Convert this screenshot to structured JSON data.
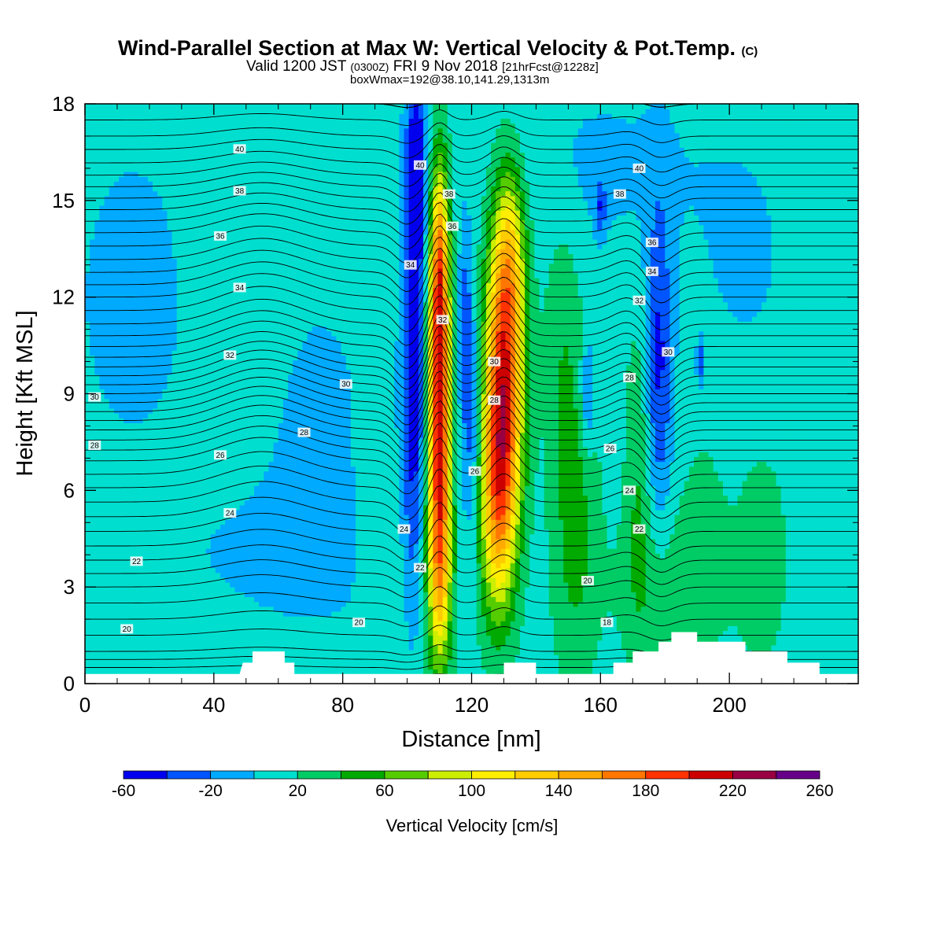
{
  "title": {
    "main": "Wind-Parallel Section at Max W: Vertical Velocity & Pot.Temp.",
    "main_mark": "(C)",
    "valid_a": "Valid 1200 JST",
    "valid_b": "(0300Z)",
    "valid_c": "FRI 9 Nov 2018",
    "valid_d": "[21hrFcst@1228z]",
    "box": "boxWmax=192@38.10,141.29,1313m"
  },
  "colorbar": {
    "label": "Vertical Velocity [cm/s]",
    "tick_labels": [
      "-60",
      "-20",
      "20",
      "60",
      "100",
      "140",
      "180",
      "220",
      "260"
    ],
    "levels": [
      -60,
      -40,
      -20,
      0,
      20,
      40,
      60,
      80,
      100,
      120,
      140,
      160,
      180,
      200,
      220,
      240,
      260
    ],
    "colors": [
      "#0000ee",
      "#0055ff",
      "#00aaff",
      "#00dfcf",
      "#00cc66",
      "#00aa00",
      "#55cc00",
      "#ccee00",
      "#ffee00",
      "#ffcc00",
      "#ffaa00",
      "#ff7700",
      "#ff3300",
      "#cc0000",
      "#990044",
      "#660088"
    ]
  },
  "chart_data": {
    "type": "heatmap",
    "title": "Wind-Parallel Section at Max W: Vertical Velocity & Pot.Temp.",
    "xlabel": "Distance [nm]",
    "ylabel": "Height [Kft MSL]",
    "xlim": [
      0,
      240
    ],
    "ylim": [
      0,
      18
    ],
    "xticks": [
      0,
      40,
      80,
      120,
      160,
      200
    ],
    "yticks": [
      0,
      3,
      6,
      9,
      12,
      15,
      18
    ],
    "background_value": 10,
    "w_features": [
      {
        "x": 110,
        "z": 8.0,
        "wx": 2.4,
        "wz": 4.2,
        "amp": 190
      },
      {
        "x": 110,
        "z": 13.0,
        "wx": 2.0,
        "wz": 2.2,
        "amp": 95
      },
      {
        "x": 110,
        "z": 3.5,
        "wx": 3.0,
        "wz": 2.0,
        "amp": 60
      },
      {
        "x": 130,
        "z": 9.5,
        "wx": 4.2,
        "wz": 3.2,
        "amp": 170
      },
      {
        "x": 128,
        "z": 5.5,
        "wx": 4.0,
        "wz": 2.6,
        "amp": 110
      },
      {
        "x": 132,
        "z": 13.5,
        "wx": 3.5,
        "wz": 2.0,
        "amp": 70
      },
      {
        "x": 152,
        "z": 5.0,
        "wx": 5.0,
        "wz": 3.5,
        "amp": 38
      },
      {
        "x": 148,
        "z": 11.0,
        "wx": 4.0,
        "wz": 3.0,
        "amp": 22
      },
      {
        "x": 172,
        "z": 6.5,
        "wx": 3.0,
        "wz": 3.5,
        "amp": 30
      },
      {
        "x": 180,
        "z": 3.0,
        "wx": 12.0,
        "wz": 1.8,
        "amp": 22
      },
      {
        "x": 210,
        "z": 4.0,
        "wx": 6.0,
        "wz": 2.5,
        "amp": 22
      },
      {
        "x": 192,
        "z": 5.0,
        "wx": 5.0,
        "wz": 2.5,
        "amp": 15
      },
      {
        "x": 88,
        "z": 4.5,
        "wx": 2.5,
        "wz": 2.0,
        "amp": 18
      },
      {
        "x": 96,
        "z": 3.5,
        "wx": 2.0,
        "wz": 1.5,
        "amp": 15
      },
      {
        "x": 102,
        "z": 10.0,
        "wx": 2.5,
        "wz": 4.5,
        "amp": -70
      },
      {
        "x": 103,
        "z": 16.0,
        "wx": 2.2,
        "wz": 2.0,
        "amp": -60
      },
      {
        "x": 120,
        "z": 8.0,
        "wx": 2.3,
        "wz": 2.5,
        "amp": -45
      },
      {
        "x": 118,
        "z": 11.5,
        "wx": 1.5,
        "wz": 2.0,
        "amp": -35
      },
      {
        "x": 178,
        "z": 10.0,
        "wx": 3.0,
        "wz": 3.5,
        "amp": -55
      },
      {
        "x": 156,
        "z": 9.0,
        "wx": 1.5,
        "wz": 1.2,
        "amp": -45
      },
      {
        "x": 191,
        "z": 10.0,
        "wx": 0.8,
        "wz": 0.5,
        "amp": -45
      },
      {
        "x": 160,
        "z": 14.8,
        "wx": 1.2,
        "wz": 0.6,
        "amp": -40
      },
      {
        "x": 15,
        "z": 12.0,
        "wx": 15.0,
        "wz": 4.0,
        "amp": -16
      },
      {
        "x": 72,
        "z": 8.0,
        "wx": 14.0,
        "wz": 4.0,
        "amp": -14
      },
      {
        "x": 60,
        "z": 4.0,
        "wx": 28.0,
        "wz": 1.6,
        "amp": -12
      },
      {
        "x": 160,
        "z": 16.0,
        "wx": 25.0,
        "wz": 2.0,
        "amp": -14
      },
      {
        "x": 205,
        "z": 13.0,
        "wx": 12.0,
        "wz": 3.0,
        "amp": -12
      },
      {
        "x": 50,
        "z": 14.0,
        "wx": 10.0,
        "wz": 3.0,
        "amp": 8
      }
    ],
    "terrain_kft": [
      [
        0,
        0.3
      ],
      [
        48,
        0.3
      ],
      [
        49,
        0.65
      ],
      [
        52,
        0.65
      ],
      [
        52,
        1.0
      ],
      [
        62,
        1.0
      ],
      [
        62,
        0.65
      ],
      [
        65,
        0.65
      ],
      [
        65,
        0.3
      ],
      [
        130,
        0.3
      ],
      [
        130,
        0.65
      ],
      [
        140,
        0.65
      ],
      [
        140,
        0.3
      ],
      [
        164,
        0.3
      ],
      [
        164,
        0.65
      ],
      [
        170,
        0.65
      ],
      [
        170,
        1.0
      ],
      [
        178,
        1.0
      ],
      [
        178,
        1.3
      ],
      [
        182,
        1.3
      ],
      [
        182,
        1.6
      ],
      [
        190,
        1.6
      ],
      [
        190,
        1.3
      ],
      [
        205,
        1.3
      ],
      [
        205,
        1.0
      ],
      [
        218,
        1.0
      ],
      [
        218,
        0.65
      ],
      [
        228,
        0.65
      ],
      [
        228,
        0.3
      ],
      [
        240,
        0.3
      ]
    ],
    "theta_contours": {
      "units": "C",
      "levels": [
        17,
        17.5,
        18,
        18.5,
        19,
        19.5,
        20,
        20.5,
        21,
        21.5,
        22,
        22.5,
        23,
        23.5,
        24,
        24.5,
        25,
        25.5,
        26,
        26.5,
        27,
        27.5,
        28,
        28.5,
        29,
        29.5,
        30,
        30.5,
        31,
        31.5,
        32,
        32.5,
        33,
        33.5,
        34,
        34.5,
        35,
        35.5,
        36,
        36.5,
        37,
        37.5,
        38,
        38.5,
        39,
        39.5,
        40,
        40.5,
        41,
        41.5,
        42
      ],
      "base_profile": [
        [
          0,
          17.0
        ],
        [
          1,
          19.0
        ],
        [
          2,
          20.0
        ],
        [
          3,
          21.0
        ],
        [
          4,
          22.2
        ],
        [
          5,
          23.3
        ],
        [
          6,
          24.4
        ],
        [
          7,
          25.6
        ],
        [
          8,
          27.2
        ],
        [
          9,
          29.0
        ],
        [
          10,
          30.8
        ],
        [
          11,
          32.3
        ],
        [
          12,
          33.5
        ],
        [
          13,
          34.8
        ],
        [
          14,
          36.0
        ],
        [
          15,
          37.4
        ],
        [
          16,
          38.8
        ],
        [
          17,
          40.0
        ],
        [
          18,
          41.0
        ]
      ],
      "labels": [
        {
          "text": "40",
          "x": 48,
          "z": 16.6
        },
        {
          "text": "38",
          "x": 48,
          "z": 15.3
        },
        {
          "text": "36",
          "x": 42,
          "z": 13.9
        },
        {
          "text": "34",
          "x": 48,
          "z": 12.3
        },
        {
          "text": "32",
          "x": 45,
          "z": 10.2
        },
        {
          "text": "30",
          "x": 81,
          "z": 9.3
        },
        {
          "text": "30",
          "x": 3,
          "z": 8.9
        },
        {
          "text": "28",
          "x": 3,
          "z": 7.4
        },
        {
          "text": "28",
          "x": 68,
          "z": 7.8
        },
        {
          "text": "26",
          "x": 42,
          "z": 7.1
        },
        {
          "text": "24",
          "x": 45,
          "z": 5.3
        },
        {
          "text": "22",
          "x": 16,
          "z": 3.8
        },
        {
          "text": "20",
          "x": 13,
          "z": 1.7
        },
        {
          "text": "20",
          "x": 85,
          "z": 1.9
        },
        {
          "text": "22",
          "x": 104,
          "z": 3.6
        },
        {
          "text": "24",
          "x": 99,
          "z": 4.8
        },
        {
          "text": "26",
          "x": 121,
          "z": 6.6
        },
        {
          "text": "28",
          "x": 127,
          "z": 8.8
        },
        {
          "text": "30",
          "x": 127,
          "z": 10.0
        },
        {
          "text": "32",
          "x": 111,
          "z": 11.3
        },
        {
          "text": "34",
          "x": 101,
          "z": 13.0
        },
        {
          "text": "36",
          "x": 114,
          "z": 14.2
        },
        {
          "text": "38",
          "x": 113,
          "z": 15.2
        },
        {
          "text": "40",
          "x": 104,
          "z": 16.1
        },
        {
          "text": "40",
          "x": 172,
          "z": 16.0
        },
        {
          "text": "38",
          "x": 166,
          "z": 15.2
        },
        {
          "text": "36",
          "x": 176,
          "z": 13.7
        },
        {
          "text": "34",
          "x": 176,
          "z": 12.8
        },
        {
          "text": "32",
          "x": 172,
          "z": 11.9
        },
        {
          "text": "30",
          "x": 181,
          "z": 10.3
        },
        {
          "text": "28",
          "x": 169,
          "z": 9.5
        },
        {
          "text": "26",
          "x": 163,
          "z": 7.3
        },
        {
          "text": "24",
          "x": 169,
          "z": 6.0
        },
        {
          "text": "22",
          "x": 172,
          "z": 4.8
        },
        {
          "text": "20",
          "x": 156,
          "z": 3.2
        },
        {
          "text": "18",
          "x": 162,
          "z": 1.9
        }
      ]
    }
  }
}
